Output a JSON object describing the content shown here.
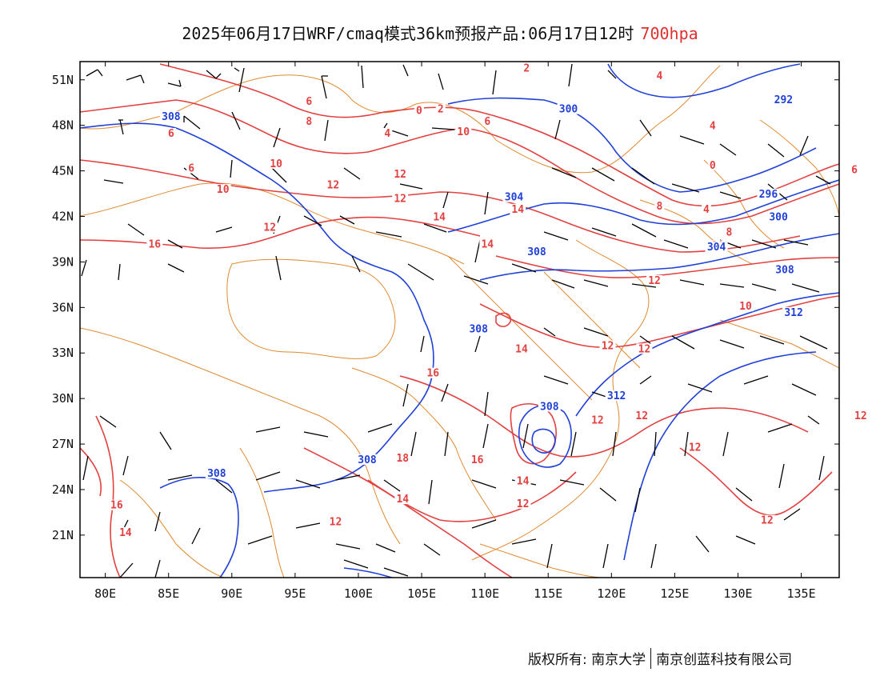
{
  "title": {
    "main": "2025年06月17日WRF/cmaq模式36km预报产品:06月17日12时",
    "level": "700hpa",
    "level_color": "#e03030"
  },
  "axes": {
    "lon_ticks": [
      "80E",
      "85E",
      "90E",
      "95E",
      "100E",
      "105E",
      "110E",
      "115E",
      "120E",
      "125E",
      "130E",
      "135E"
    ],
    "lat_ticks": [
      "51N",
      "48N",
      "45N",
      "42N",
      "39N",
      "36N",
      "33N",
      "30N",
      "27N",
      "24N",
      "21N"
    ]
  },
  "colors": {
    "temperature_contour": "#e34040",
    "height_contour": "#2040d8",
    "boundary": "#e08a30",
    "wind_barb": "#000000"
  },
  "contour_labels": {
    "temperature": [
      {
        "text": "2",
        "lon": 113.3,
        "lat": 51.6
      },
      {
        "text": "6",
        "lon": 85.2,
        "lat": 47.3
      },
      {
        "text": "6",
        "lon": 96.1,
        "lat": 49.4
      },
      {
        "text": "8",
        "lon": 96.1,
        "lat": 48.1
      },
      {
        "text": "0",
        "lon": 104.8,
        "lat": 48.8
      },
      {
        "text": "2",
        "lon": 106.5,
        "lat": 48.9
      },
      {
        "text": "4",
        "lon": 102.3,
        "lat": 47.3
      },
      {
        "text": "10",
        "lon": 108.3,
        "lat": 47.4
      },
      {
        "text": "6",
        "lon": 110.2,
        "lat": 48.1
      },
      {
        "text": "6",
        "lon": 86.8,
        "lat": 45.0
      },
      {
        "text": "10",
        "lon": 93.5,
        "lat": 45.3
      },
      {
        "text": "12",
        "lon": 98.0,
        "lat": 43.9
      },
      {
        "text": "10",
        "lon": 89.3,
        "lat": 43.6
      },
      {
        "text": "12",
        "lon": 103.3,
        "lat": 44.6
      },
      {
        "text": "12",
        "lon": 103.3,
        "lat": 43.0
      },
      {
        "text": "14",
        "lon": 106.4,
        "lat": 41.8
      },
      {
        "text": "14",
        "lon": 112.6,
        "lat": 42.3
      },
      {
        "text": "16",
        "lon": 83.9,
        "lat": 40.0
      },
      {
        "text": "12",
        "lon": 93.0,
        "lat": 41.1
      },
      {
        "text": "14",
        "lon": 110.2,
        "lat": 40.0
      },
      {
        "text": "4",
        "lon": 123.8,
        "lat": 51.1
      },
      {
        "text": "4",
        "lon": 128.0,
        "lat": 47.8
      },
      {
        "text": "0",
        "lon": 128.0,
        "lat": 45.2
      },
      {
        "text": "6",
        "lon": 139.2,
        "lat": 44.9
      },
      {
        "text": "8",
        "lon": 123.8,
        "lat": 42.5
      },
      {
        "text": "4",
        "lon": 127.5,
        "lat": 42.3
      },
      {
        "text": "8",
        "lon": 129.3,
        "lat": 40.8
      },
      {
        "text": "10",
        "lon": 128.4,
        "lat": 39.9
      },
      {
        "text": "12",
        "lon": 123.4,
        "lat": 37.6
      },
      {
        "text": "10",
        "lon": 130.6,
        "lat": 35.9
      },
      {
        "text": "14",
        "lon": 112.9,
        "lat": 33.1
      },
      {
        "text": "12",
        "lon": 119.7,
        "lat": 33.3
      },
      {
        "text": "12",
        "lon": 122.6,
        "lat": 33.1
      },
      {
        "text": "16",
        "lon": 105.9,
        "lat": 31.5
      },
      {
        "text": "12",
        "lon": 118.9,
        "lat": 28.4
      },
      {
        "text": "12",
        "lon": 122.4,
        "lat": 28.7
      },
      {
        "text": "12",
        "lon": 139.7,
        "lat": 28.7
      },
      {
        "text": "12",
        "lon": 126.6,
        "lat": 26.6
      },
      {
        "text": "18",
        "lon": 103.5,
        "lat": 25.9
      },
      {
        "text": "16",
        "lon": 109.4,
        "lat": 25.8
      },
      {
        "text": "14",
        "lon": 113.0,
        "lat": 24.4
      },
      {
        "text": "14",
        "lon": 103.5,
        "lat": 23.2
      },
      {
        "text": "12",
        "lon": 113.0,
        "lat": 22.9
      },
      {
        "text": "12",
        "lon": 98.2,
        "lat": 21.7
      },
      {
        "text": "12",
        "lon": 132.3,
        "lat": 21.8
      },
      {
        "text": "16",
        "lon": 80.9,
        "lat": 22.8
      },
      {
        "text": "14",
        "lon": 81.6,
        "lat": 21.0
      }
    ],
    "height": [
      {
        "text": "308",
        "lon": 85.2,
        "lat": 48.4
      },
      {
        "text": "300",
        "lon": 116.6,
        "lat": 48.9
      },
      {
        "text": "292",
        "lon": 133.6,
        "lat": 49.5
      },
      {
        "text": "304",
        "lon": 112.3,
        "lat": 43.1
      },
      {
        "text": "296",
        "lon": 132.4,
        "lat": 43.3
      },
      {
        "text": "300",
        "lon": 133.2,
        "lat": 41.8
      },
      {
        "text": "308",
        "lon": 114.1,
        "lat": 39.5
      },
      {
        "text": "304",
        "lon": 128.3,
        "lat": 39.8
      },
      {
        "text": "308",
        "lon": 133.7,
        "lat": 38.3
      },
      {
        "text": "312",
        "lon": 134.4,
        "lat": 35.5
      },
      {
        "text": "308",
        "lon": 109.5,
        "lat": 34.4
      },
      {
        "text": "312",
        "lon": 120.4,
        "lat": 30.0
      },
      {
        "text": "308",
        "lon": 115.1,
        "lat": 29.3
      },
      {
        "text": "308",
        "lon": 100.7,
        "lat": 25.8
      },
      {
        "text": "308",
        "lon": 88.8,
        "lat": 24.9
      }
    ]
  },
  "credit": {
    "left": "版权所有: 南京大学",
    "right": "南京创蓝科技有限公司"
  }
}
